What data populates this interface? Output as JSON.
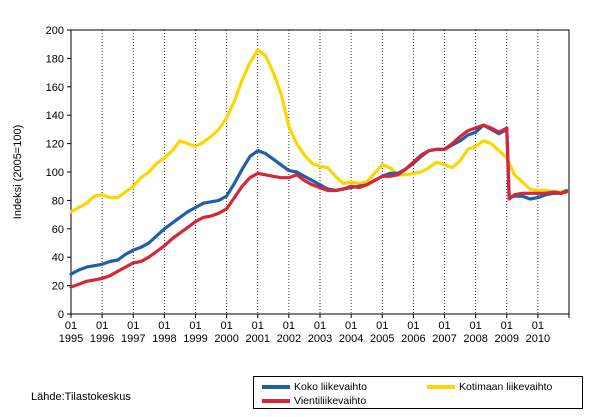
{
  "chart_data": {
    "type": "line",
    "ylabel": "Indeksi (2005=100)",
    "ylim": [
      0,
      200
    ],
    "yticks": [
      0,
      20,
      40,
      60,
      80,
      100,
      120,
      140,
      160,
      180,
      200
    ],
    "grid": "vertical dotted lines at each January",
    "x_tick_month": "01",
    "years": [
      "1995",
      "1996",
      "1997",
      "1998",
      "1999",
      "2000",
      "2001",
      "2002",
      "2003",
      "2004",
      "2005",
      "2006",
      "2007",
      "2008",
      "2009",
      "2010"
    ],
    "x_start": 1995.0,
    "x_end": 2011.0,
    "legend_position": "bottom-right",
    "series": [
      {
        "name": "Koko liikevaihto",
        "color": "#1f5fa8",
        "points": [
          [
            1995.0,
            28
          ],
          [
            1995.25,
            31
          ],
          [
            1995.5,
            33
          ],
          [
            1995.75,
            34
          ],
          [
            1996.0,
            35
          ],
          [
            1996.25,
            37
          ],
          [
            1996.5,
            38
          ],
          [
            1996.75,
            42
          ],
          [
            1997.0,
            45
          ],
          [
            1997.25,
            47
          ],
          [
            1997.5,
            50
          ],
          [
            1997.75,
            55
          ],
          [
            1998.0,
            60
          ],
          [
            1998.25,
            64
          ],
          [
            1998.5,
            68
          ],
          [
            1998.75,
            72
          ],
          [
            1999.0,
            75
          ],
          [
            1999.25,
            78
          ],
          [
            1999.5,
            79
          ],
          [
            1999.75,
            80
          ],
          [
            2000.0,
            83
          ],
          [
            2000.25,
            92
          ],
          [
            2000.5,
            102
          ],
          [
            2000.75,
            111
          ],
          [
            2001.0,
            115
          ],
          [
            2001.25,
            113
          ],
          [
            2001.5,
            109
          ],
          [
            2001.75,
            105
          ],
          [
            2002.0,
            101
          ],
          [
            2002.25,
            100
          ],
          [
            2002.5,
            97
          ],
          [
            2002.75,
            94
          ],
          [
            2003.0,
            91
          ],
          [
            2003.25,
            88
          ],
          [
            2003.5,
            87
          ],
          [
            2003.75,
            88
          ],
          [
            2004.0,
            89
          ],
          [
            2004.25,
            90
          ],
          [
            2004.5,
            91
          ],
          [
            2004.75,
            94
          ],
          [
            2005.0,
            97
          ],
          [
            2005.25,
            99
          ],
          [
            2005.5,
            99
          ],
          [
            2005.75,
            102
          ],
          [
            2006.0,
            106
          ],
          [
            2006.25,
            111
          ],
          [
            2006.5,
            115
          ],
          [
            2006.75,
            116
          ],
          [
            2007.0,
            116
          ],
          [
            2007.25,
            119
          ],
          [
            2007.5,
            122
          ],
          [
            2007.75,
            126
          ],
          [
            2008.0,
            128
          ],
          [
            2008.25,
            133
          ],
          [
            2008.5,
            130
          ],
          [
            2008.75,
            127
          ],
          [
            2009.0,
            130
          ],
          [
            2009.08,
            82
          ],
          [
            2009.25,
            83
          ],
          [
            2009.5,
            83
          ],
          [
            2009.75,
            81
          ],
          [
            2010.0,
            82
          ],
          [
            2010.25,
            84
          ],
          [
            2010.5,
            85
          ],
          [
            2010.75,
            85
          ],
          [
            2010.92,
            87
          ]
        ]
      },
      {
        "name": "Kotimaan liikevaihto",
        "color": "#ffd400",
        "points": [
          [
            1995.0,
            72
          ],
          [
            1995.25,
            75
          ],
          [
            1995.5,
            78
          ],
          [
            1995.75,
            83
          ],
          [
            1996.0,
            84
          ],
          [
            1996.25,
            82
          ],
          [
            1996.5,
            82
          ],
          [
            1996.75,
            86
          ],
          [
            1997.0,
            90
          ],
          [
            1997.25,
            96
          ],
          [
            1997.5,
            100
          ],
          [
            1997.75,
            106
          ],
          [
            1998.0,
            110
          ],
          [
            1998.25,
            115
          ],
          [
            1998.5,
            122
          ],
          [
            1998.75,
            120
          ],
          [
            1999.0,
            118
          ],
          [
            1999.25,
            121
          ],
          [
            1999.5,
            125
          ],
          [
            1999.75,
            130
          ],
          [
            2000.0,
            138
          ],
          [
            2000.25,
            150
          ],
          [
            2000.5,
            165
          ],
          [
            2000.75,
            177
          ],
          [
            2001.0,
            186
          ],
          [
            2001.25,
            182
          ],
          [
            2001.5,
            170
          ],
          [
            2001.75,
            155
          ],
          [
            2002.0,
            132
          ],
          [
            2002.25,
            120
          ],
          [
            2002.5,
            112
          ],
          [
            2002.75,
            106
          ],
          [
            2003.0,
            104
          ],
          [
            2003.25,
            103
          ],
          [
            2003.5,
            97
          ],
          [
            2003.75,
            92
          ],
          [
            2004.0,
            93
          ],
          [
            2004.25,
            92
          ],
          [
            2004.5,
            93
          ],
          [
            2004.75,
            99
          ],
          [
            2005.0,
            105
          ],
          [
            2005.25,
            103
          ],
          [
            2005.5,
            98
          ],
          [
            2005.75,
            98
          ],
          [
            2006.0,
            99
          ],
          [
            2006.25,
            100
          ],
          [
            2006.5,
            103
          ],
          [
            2006.75,
            107
          ],
          [
            2007.0,
            105
          ],
          [
            2007.25,
            103
          ],
          [
            2007.5,
            108
          ],
          [
            2007.75,
            116
          ],
          [
            2008.0,
            118
          ],
          [
            2008.25,
            122
          ],
          [
            2008.5,
            120
          ],
          [
            2008.75,
            115
          ],
          [
            2009.0,
            110
          ],
          [
            2009.25,
            98
          ],
          [
            2009.5,
            93
          ],
          [
            2009.75,
            88
          ],
          [
            2010.0,
            87
          ],
          [
            2010.25,
            87
          ],
          [
            2010.5,
            86
          ],
          [
            2010.75,
            86
          ],
          [
            2010.92,
            87
          ]
        ]
      },
      {
        "name": "Vientiliikevaihto",
        "color": "#d72638",
        "points": [
          [
            1995.0,
            19
          ],
          [
            1995.25,
            21
          ],
          [
            1995.5,
            23
          ],
          [
            1995.75,
            24
          ],
          [
            1996.0,
            25
          ],
          [
            1996.25,
            27
          ],
          [
            1996.5,
            30
          ],
          [
            1996.75,
            33
          ],
          [
            1997.0,
            36
          ],
          [
            1997.25,
            37
          ],
          [
            1997.5,
            40
          ],
          [
            1997.75,
            44
          ],
          [
            1998.0,
            48
          ],
          [
            1998.25,
            53
          ],
          [
            1998.5,
            57
          ],
          [
            1998.75,
            61
          ],
          [
            1999.0,
            65
          ],
          [
            1999.25,
            68
          ],
          [
            1999.5,
            69
          ],
          [
            1999.75,
            71
          ],
          [
            2000.0,
            74
          ],
          [
            2000.25,
            82
          ],
          [
            2000.5,
            90
          ],
          [
            2000.75,
            96
          ],
          [
            2001.0,
            99
          ],
          [
            2001.25,
            98
          ],
          [
            2001.5,
            97
          ],
          [
            2001.75,
            96
          ],
          [
            2002.0,
            96
          ],
          [
            2002.25,
            98
          ],
          [
            2002.5,
            94
          ],
          [
            2002.75,
            91
          ],
          [
            2003.0,
            89
          ],
          [
            2003.25,
            87
          ],
          [
            2003.5,
            87
          ],
          [
            2003.75,
            88
          ],
          [
            2004.0,
            90
          ],
          [
            2004.25,
            89
          ],
          [
            2004.5,
            91
          ],
          [
            2004.75,
            94
          ],
          [
            2005.0,
            97
          ],
          [
            2005.25,
            97
          ],
          [
            2005.5,
            98
          ],
          [
            2005.75,
            102
          ],
          [
            2006.0,
            107
          ],
          [
            2006.25,
            112
          ],
          [
            2006.5,
            115
          ],
          [
            2006.75,
            116
          ],
          [
            2007.0,
            116
          ],
          [
            2007.25,
            120
          ],
          [
            2007.5,
            125
          ],
          [
            2007.75,
            129
          ],
          [
            2008.0,
            131
          ],
          [
            2008.25,
            133
          ],
          [
            2008.5,
            131
          ],
          [
            2008.75,
            128
          ],
          [
            2009.0,
            131
          ],
          [
            2009.08,
            81
          ],
          [
            2009.25,
            84
          ],
          [
            2009.5,
            85
          ],
          [
            2009.75,
            85
          ],
          [
            2010.0,
            85
          ],
          [
            2010.25,
            85
          ],
          [
            2010.5,
            86
          ],
          [
            2010.75,
            85
          ],
          [
            2010.92,
            86
          ]
        ]
      }
    ]
  },
  "source_note": "Lähde:Tilastokeskus"
}
